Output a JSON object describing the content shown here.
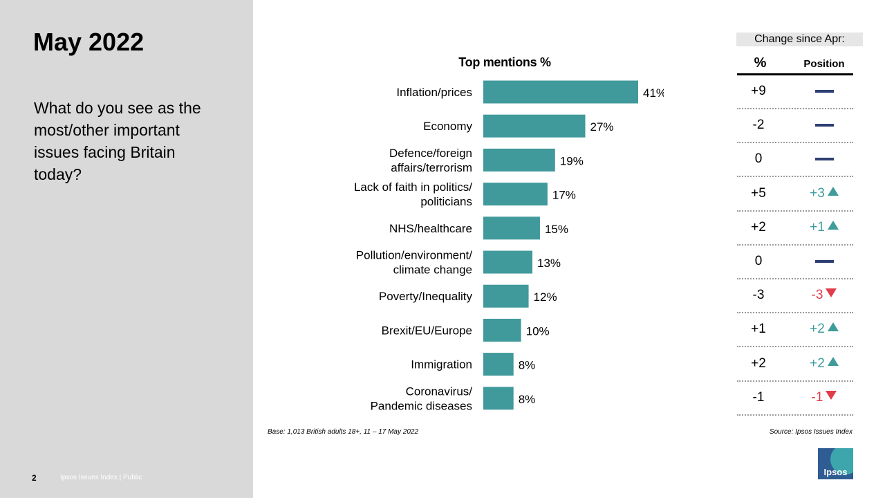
{
  "slide": {
    "title": "May 2022",
    "question": "What do you see as the most/other important issues facing Britain today?",
    "page_number": "2",
    "footer_label": "Ipsos Issues Index | Public",
    "base_note": "Base: 1,013 British adults 18+, 11 – 17 May 2022",
    "source_note": "Source: Ipsos Issues Index",
    "logo_text": "Ipsos"
  },
  "colors": {
    "bar": "#40999a",
    "dash": "#2d3f73",
    "up": "#3f9c9a",
    "down": "#e03c4a",
    "left_panel": "#d9d9d9"
  },
  "chart_data": {
    "type": "bar",
    "orientation": "horizontal",
    "title": "Top mentions %",
    "categories": [
      [
        "Inflation/prices"
      ],
      [
        "Economy"
      ],
      [
        "Defence/foreign",
        "affairs/terrorism"
      ],
      [
        "Lack of faith in politics/",
        "politicians"
      ],
      [
        "NHS/healthcare"
      ],
      [
        "Pollution/environment/",
        "climate change"
      ],
      [
        "Poverty/Inequality"
      ],
      [
        "Brexit/EU/Europe"
      ],
      [
        "Immigration"
      ],
      [
        "Coronavirus/",
        "Pandemic diseases"
      ]
    ],
    "values": [
      41,
      27,
      19,
      17,
      15,
      13,
      12,
      10,
      8,
      8
    ],
    "value_labels": [
      "41%",
      "27%",
      "19%",
      "17%",
      "15%",
      "13%",
      "12%",
      "10%",
      "8%",
      "8%"
    ],
    "xlim": [
      0,
      50
    ]
  },
  "change": {
    "header": "Change since Apr:",
    "pct_header": "%",
    "pos_header": "Position",
    "rows": [
      {
        "pct": "+9",
        "pos": "",
        "dir": "same"
      },
      {
        "pct": "-2",
        "pos": "",
        "dir": "same"
      },
      {
        "pct": "0",
        "pos": "",
        "dir": "same"
      },
      {
        "pct": "+5",
        "pos": "+3",
        "dir": "up"
      },
      {
        "pct": "+2",
        "pos": "+1",
        "dir": "up"
      },
      {
        "pct": "0",
        "pos": "",
        "dir": "same"
      },
      {
        "pct": "-3",
        "pos": "-3",
        "dir": "down"
      },
      {
        "pct": "+1",
        "pos": "+2",
        "dir": "up"
      },
      {
        "pct": "+2",
        "pos": "+2",
        "dir": "up"
      },
      {
        "pct": "-1",
        "pos": "-1",
        "dir": "down"
      }
    ]
  }
}
